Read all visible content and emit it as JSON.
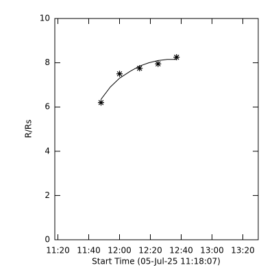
{
  "chart_data": {
    "type": "scatter",
    "x_label": "Start Time (05-Jul-25 11:18:07)",
    "y_label": "R/Rs",
    "x": [
      "11:48",
      "12:00",
      "12:13",
      "12:25",
      "12:37"
    ],
    "values": [
      6.2,
      7.5,
      7.75,
      7.95,
      8.25
    ],
    "fit": {
      "x": [
        "11:48",
        "11:54",
        "12:00",
        "12:07",
        "12:13",
        "12:19",
        "12:25",
        "12:31",
        "12:37"
      ],
      "values": [
        6.35,
        6.9,
        7.3,
        7.62,
        7.85,
        8.0,
        8.1,
        8.15,
        8.15
      ]
    },
    "color": "#000000",
    "xlim": [
      "11:18",
      "13:30"
    ],
    "xticks": [
      "11:20",
      "11:40",
      "12:00",
      "12:20",
      "12:40",
      "13:00",
      "13:20"
    ],
    "ylim": [
      0,
      10
    ],
    "yticks": [
      0,
      2,
      4,
      6,
      8,
      10
    ]
  }
}
